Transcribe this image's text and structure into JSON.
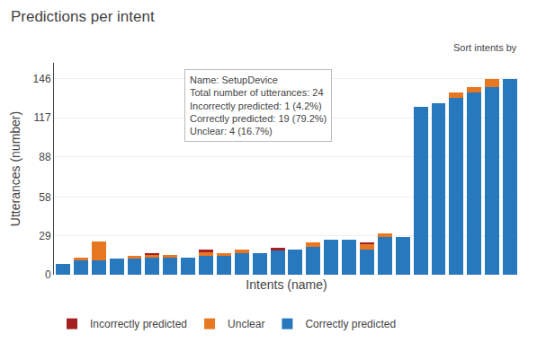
{
  "chart_data": {
    "type": "bar",
    "title": "Predictions per intent",
    "xlabel": "Intents (name)",
    "ylabel": "Utterances (number)",
    "stacked": true,
    "grid": true,
    "legend": "bottom",
    "tick_labels": "y",
    "categories": [
      null,
      null,
      null,
      null,
      null,
      null,
      null,
      null,
      null,
      null,
      null,
      null,
      null,
      null,
      null,
      null,
      null,
      null,
      null,
      null,
      null,
      null,
      null,
      null,
      null,
      null
    ],
    "series": [
      {
        "name": "Correctly predicted",
        "color": "#2878BE",
        "values": [
          8,
          11,
          11,
          12,
          12,
          13,
          13,
          13,
          14,
          14,
          16,
          16,
          18,
          19,
          21,
          26,
          26,
          19,
          28,
          28,
          125,
          128,
          132,
          136,
          140,
          146
        ]
      },
      {
        "name": "Unclear",
        "color": "#E87722",
        "values": [
          0,
          2,
          14,
          0,
          2,
          2,
          2,
          0,
          3,
          2,
          3,
          0,
          0,
          0,
          3,
          0,
          0,
          4,
          3,
          0,
          0,
          0,
          4,
          4,
          6,
          0
        ]
      },
      {
        "name": "Incorrectly predicted",
        "color": "#A52020",
        "values": [
          0,
          0,
          0,
          0,
          0,
          1,
          0,
          0,
          2,
          0,
          0,
          0,
          2,
          0,
          0,
          0,
          0,
          1,
          0,
          0,
          0,
          0,
          0,
          0,
          0,
          0
        ]
      }
    ],
    "ylim": [
      0,
      158
    ],
    "yticks": [
      0,
      29,
      58,
      88,
      117,
      146
    ],
    "annotations": [
      "Sort intents by",
      [
        "Name: SetupDevice",
        "Total number of utterances: 24",
        "Incorrectly predicted: 1 (4.2%)",
        "Correctly predicted: 19 (79.2%)",
        "Unclear: 4 (16.7%)"
      ]
    ]
  }
}
